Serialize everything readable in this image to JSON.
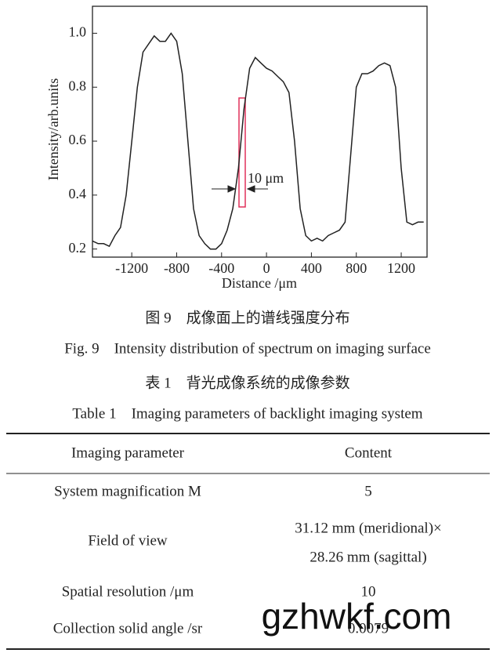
{
  "chart_data": {
    "type": "line",
    "x_label": "Distance /μm",
    "y_label": "Intensity/arb.units",
    "annotation": "10 μm",
    "x": [
      -1550,
      -1500,
      -1450,
      -1400,
      -1350,
      -1300,
      -1250,
      -1200,
      -1150,
      -1100,
      -1050,
      -1000,
      -950,
      -900,
      -850,
      -800,
      -750,
      -700,
      -650,
      -600,
      -550,
      -500,
      -450,
      -400,
      -350,
      -300,
      -250,
      -200,
      -150,
      -100,
      -50,
      0,
      50,
      100,
      150,
      200,
      250,
      300,
      350,
      400,
      450,
      500,
      550,
      600,
      650,
      700,
      750,
      800,
      850,
      900,
      950,
      1000,
      1050,
      1100,
      1150,
      1200,
      1250,
      1300,
      1350,
      1400
    ],
    "series": [
      {
        "color": "#222222",
        "values": [
          0.23,
          0.22,
          0.22,
          0.21,
          0.25,
          0.28,
          0.4,
          0.6,
          0.8,
          0.93,
          0.96,
          0.99,
          0.97,
          0.97,
          1.0,
          0.97,
          0.85,
          0.6,
          0.35,
          0.25,
          0.22,
          0.2,
          0.2,
          0.22,
          0.27,
          0.35,
          0.5,
          0.72,
          0.87,
          0.91,
          0.89,
          0.87,
          0.86,
          0.84,
          0.82,
          0.78,
          0.6,
          0.35,
          0.25,
          0.23,
          0.24,
          0.23,
          0.25,
          0.26,
          0.27,
          0.3,
          0.55,
          0.8,
          0.85,
          0.85,
          0.86,
          0.88,
          0.89,
          0.88,
          0.8,
          0.5,
          0.3,
          0.29,
          0.3,
          0.3
        ]
      }
    ],
    "xlim": [
      -1550,
      1430
    ],
    "ylim": [
      0.17,
      1.1
    ],
    "xticks": [
      -1200,
      -800,
      -400,
      0,
      400,
      800,
      1200
    ],
    "yticks": [
      0.2,
      0.4,
      0.6,
      0.8,
      {
        "value": 1,
        "label": "1.0"
      }
    ]
  },
  "figure_caption_cn": "图 9　成像面上的谱线强度分布",
  "figure_caption_en": "Fig. 9　Intensity distribution of spectrum on imaging surface",
  "table_title_cn": "表 1　背光成像系统的成像参数",
  "table_title_en": "Table 1　Imaging parameters of backlight imaging system",
  "table": {
    "header": [
      "Imaging parameter",
      "Content"
    ],
    "rows": [
      [
        "System magnification M",
        "5"
      ],
      [
        "Field of view",
        [
          "31.12 mm (meridional)×",
          "28.26 mm (sagittal)"
        ]
      ],
      [
        "Spatial resolution /μm",
        "10"
      ],
      [
        "Collection solid angle /sr",
        "0.0079"
      ]
    ]
  },
  "watermark": "gzhwkf.com"
}
